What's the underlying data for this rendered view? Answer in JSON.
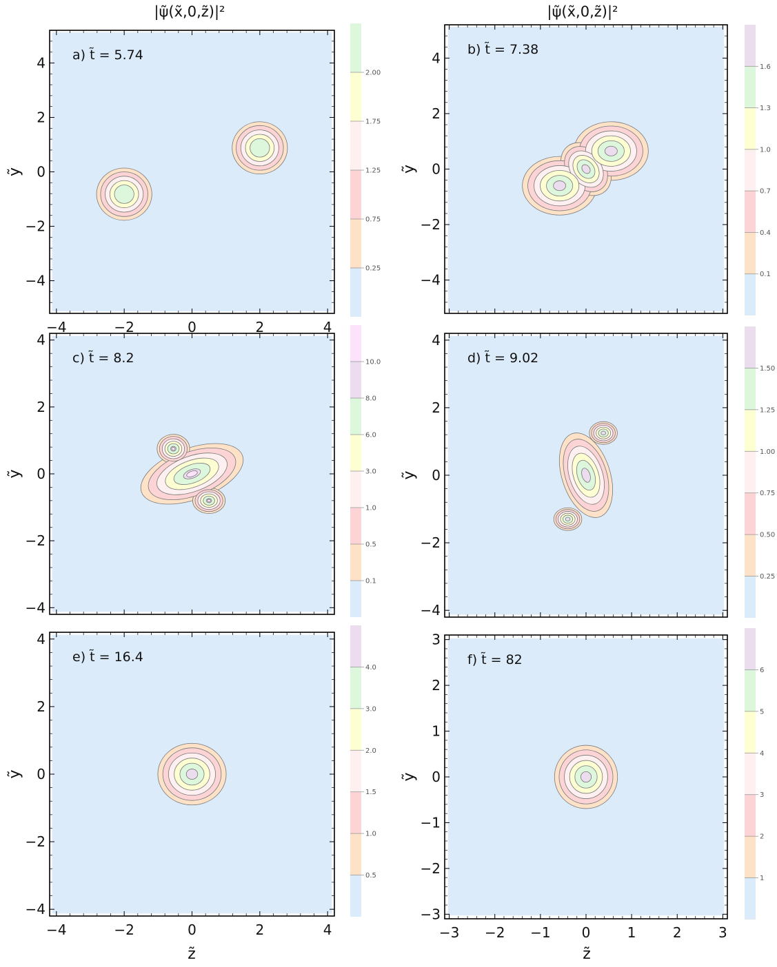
{
  "column_titles": [
    "|ψ̃(x̃,0,z̃)|²",
    "|ψ̃(x̃,0,z̃)|²"
  ],
  "xlabel": "z̃",
  "ylabel": "ỹ",
  "colors": {
    "background": "#dcebfa",
    "levels": [
      "#fde2c8",
      "#fdd4d6",
      "#fef0f0",
      "#fefed3",
      "#ddf7dc",
      "#ebdcee",
      "#fde2fb"
    ]
  },
  "chart_data": [
    {
      "type": "contour",
      "panel": "a",
      "label": "a) t̃ = 5.74",
      "xlim": [
        -4.2,
        4.2
      ],
      "ylim": [
        -5.2,
        5.2
      ],
      "xticks": [
        -4,
        -2,
        0,
        2,
        4
      ],
      "yticks": [
        -4,
        -2,
        0,
        2,
        4
      ],
      "colorbar": {
        "ticks": [
          "0.25",
          "0.75",
          "1.25",
          "1.75",
          "2.00"
        ],
        "colors": [
          "#dcebfa",
          "#fde2c8",
          "#fdd4d6",
          "#fef0f0",
          "#fefed3",
          "#ddf7dc"
        ]
      },
      "blobs": [
        {
          "cx": -2,
          "cy": -0.82,
          "rx": 0.85,
          "ry": 1.0,
          "rot": 0
        },
        {
          "cx": 2,
          "cy": 0.88,
          "rx": 0.85,
          "ry": 1.0,
          "rot": 0
        }
      ]
    },
    {
      "type": "contour",
      "panel": "b",
      "label": "b) t̃ = 7.38",
      "xlim": [
        -3.1,
        3.1
      ],
      "ylim": [
        -5.2,
        5.2
      ],
      "xticks": [],
      "yticks": [
        -4,
        -2,
        0,
        2,
        4
      ],
      "colorbar": {
        "ticks": [
          "0.1",
          "0.4",
          "0.7",
          "1.0",
          "1.3",
          "1.6"
        ],
        "colors": [
          "#dcebfa",
          "#fde2c8",
          "#fdd4d6",
          "#fef0f0",
          "#fefed3",
          "#ddf7dc",
          "#ebdcee"
        ]
      },
      "blobs": [
        {
          "cx": -0.58,
          "cy": -0.6,
          "rx": 0.85,
          "ry": 1.1,
          "rot": 0
        },
        {
          "cx": 0.55,
          "cy": 0.65,
          "rx": 0.85,
          "ry": 1.1,
          "rot": 0
        },
        {
          "cx": 0,
          "cy": 0,
          "rx": 0.5,
          "ry": 1.1,
          "rot": 40
        }
      ]
    },
    {
      "type": "contour",
      "panel": "c",
      "label": "c) t̃ = 8.2",
      "xlim": [
        -4.2,
        4.2
      ],
      "ylim": [
        -4.2,
        4.2
      ],
      "xticks": [],
      "yticks": [
        -4,
        -2,
        0,
        2,
        4
      ],
      "colorbar": {
        "ticks": [
          "0.1",
          "0.5",
          "1.0",
          "3.0",
          "6.0",
          "8.0",
          "10.0"
        ],
        "colors": [
          "#dcebfa",
          "#fde2c8",
          "#fdd4d6",
          "#fef0f0",
          "#fefed3",
          "#ddf7dc",
          "#ebdcee",
          "#fde2fb"
        ]
      },
      "blobs": [
        {
          "cx": 0,
          "cy": 0,
          "rx": 1.65,
          "ry": 0.8,
          "rot": 20
        },
        {
          "cx": -0.55,
          "cy": 0.75,
          "rx": 0.5,
          "ry": 0.45,
          "rot": 0
        },
        {
          "cx": 0.5,
          "cy": -0.8,
          "rx": 0.5,
          "ry": 0.4,
          "rot": 0
        }
      ]
    },
    {
      "type": "contour",
      "panel": "d",
      "label": "d) t̃ = 9.02",
      "xlim": [
        -3.1,
        3.1
      ],
      "ylim": [
        -4.2,
        4.2
      ],
      "xticks": [],
      "yticks": [
        -4,
        -2,
        0,
        2,
        4
      ],
      "colorbar": {
        "ticks": [
          "0.25",
          "0.50",
          "0.75",
          "1.00",
          "1.25",
          "1.50"
        ],
        "colors": [
          "#dcebfa",
          "#fde2c8",
          "#fdd4d6",
          "#fef0f0",
          "#fefed3",
          "#ddf7dc",
          "#ebdcee"
        ]
      },
      "blobs": [
        {
          "cx": 0,
          "cy": 0,
          "rx": 0.55,
          "ry": 1.35,
          "rot": 18
        },
        {
          "cx": 0.38,
          "cy": 1.25,
          "rx": 0.32,
          "ry": 0.35,
          "rot": 0
        },
        {
          "cx": -0.4,
          "cy": -1.3,
          "rx": 0.32,
          "ry": 0.35,
          "rot": 0
        }
      ]
    },
    {
      "type": "contour",
      "panel": "e",
      "label": "e) t̃ = 16.4",
      "xlim": [
        -4.2,
        4.2
      ],
      "ylim": [
        -4.2,
        4.2
      ],
      "xticks": [
        -4,
        -2,
        0,
        2,
        4
      ],
      "yticks": [
        -4,
        -2,
        0,
        2,
        4
      ],
      "colorbar": {
        "ticks": [
          "0.5",
          "1.0",
          "1.5",
          "2.0",
          "3.0",
          "4.0"
        ],
        "colors": [
          "#dcebfa",
          "#fde2c8",
          "#fdd4d6",
          "#fef0f0",
          "#fefed3",
          "#ddf7dc",
          "#ebdcee"
        ]
      },
      "blobs": [
        {
          "cx": 0,
          "cy": 0,
          "rx": 1.05,
          "ry": 0.95,
          "rot": 0
        }
      ]
    },
    {
      "type": "contour",
      "panel": "f",
      "label": "f) t̃ = 82",
      "xlim": [
        -3.1,
        3.1
      ],
      "ylim": [
        -3.1,
        3.1
      ],
      "xticks": [
        -3,
        -2,
        -1,
        0,
        1,
        2,
        3
      ],
      "yticks": [
        -3,
        -2,
        -1,
        0,
        1,
        2,
        3
      ],
      "colorbar": {
        "ticks": [
          "1",
          "2",
          "3",
          "4",
          "5",
          "6"
        ],
        "colors": [
          "#dcebfa",
          "#fde2c8",
          "#fdd4d6",
          "#fef0f0",
          "#fefed3",
          "#ddf7dc",
          "#ebdcee"
        ]
      },
      "blobs": [
        {
          "cx": 0,
          "cy": 0,
          "rx": 0.72,
          "ry": 0.72,
          "rot": 0
        }
      ]
    }
  ]
}
